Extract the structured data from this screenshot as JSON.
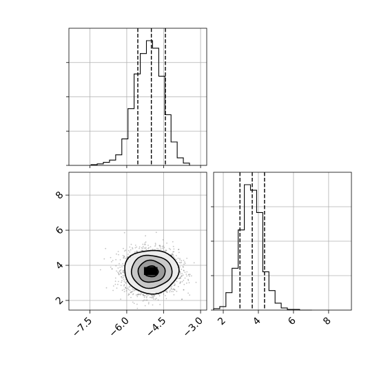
{
  "chart_data": {
    "type": "corner",
    "parameters": [
      {
        "title": "",
        "label": "",
        "range": [
          -8.35,
          -2.75
        ],
        "quantiles": [
          -5.55,
          -5.0,
          -4.43
        ]
      },
      {
        "title": "",
        "label": "",
        "range": [
          1.45,
          9.3
        ],
        "quantiles": [
          2.95,
          3.65,
          4.35
        ]
      }
    ],
    "hist_x": {
      "bins": [
        -7.45,
        -7.2,
        -6.95,
        -6.7,
        -6.45,
        -6.2,
        -5.95,
        -5.7,
        -5.45,
        -5.2,
        -4.95,
        -4.7,
        -4.45,
        -4.2,
        -3.95,
        -3.7,
        -3.45
      ],
      "counts": [
        1,
        2,
        4,
        7,
        14,
        35,
        75,
        121,
        148,
        165,
        155,
        118,
        67,
        31,
        10,
        3
      ]
    },
    "hist_y": {
      "bins": [
        1.45,
        1.8,
        2.15,
        2.5,
        2.85,
        3.2,
        3.55,
        3.9,
        4.25,
        4.6,
        4.95,
        5.3,
        5.65,
        6.0,
        6.35,
        6.7,
        7.05
      ],
      "counts": [
        2,
        5,
        25,
        60,
        115,
        180,
        172,
        140,
        55,
        28,
        10,
        3,
        1,
        1,
        0,
        0
      ]
    },
    "density_2d": {
      "center": [
        -5.0,
        3.65
      ],
      "sigma": [
        0.55,
        0.62
      ],
      "contour_levels_sigma": [
        0.5,
        1.0,
        1.5,
        2.0
      ],
      "peak_rect": {
        "x": [
          -5.3,
          -4.75
        ],
        "y": [
          3.45,
          3.9
        ]
      }
    },
    "tick_labels": {
      "x_param": [
        "−7.5",
        "−6.0",
        "−4.5",
        "−3.0"
      ],
      "y_param": [
        "2",
        "4",
        "6",
        "8"
      ]
    },
    "grid": true
  }
}
